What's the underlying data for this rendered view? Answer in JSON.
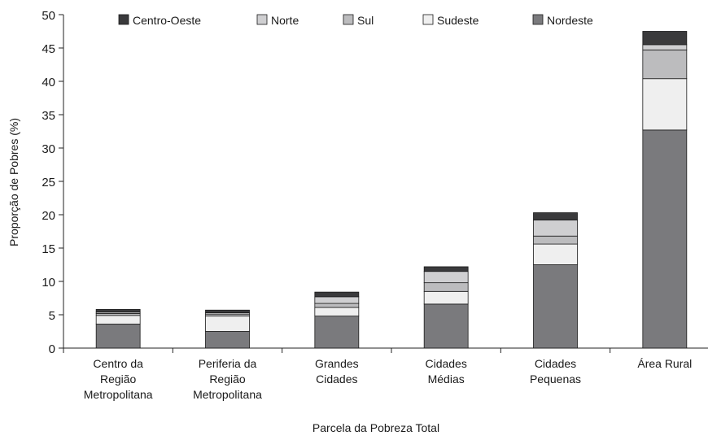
{
  "chart_data": {
    "type": "bar",
    "stacked": true,
    "title": "",
    "xlabel": "Parcela da Pobreza Total",
    "ylabel": "Proporção de Pobres (%)",
    "ylim": [
      0,
      50
    ],
    "yticks": [
      0,
      5,
      10,
      15,
      20,
      25,
      30,
      35,
      40,
      45,
      50
    ],
    "grid": false,
    "legend_position": "top",
    "categories": [
      [
        "Centro da",
        "Região",
        "Metropolitana"
      ],
      [
        "Periferia da",
        "Região",
        "Metropolitana"
      ],
      [
        "Grandes",
        "Cidades"
      ],
      [
        "Cidades",
        "Médias"
      ],
      [
        "Cidades",
        "Pequenas"
      ],
      [
        "Área Rural"
      ]
    ],
    "series": [
      {
        "name": "Nordeste",
        "color": "#7a7a7d",
        "values": [
          3.6,
          2.5,
          4.8,
          6.6,
          12.5,
          32.7
        ]
      },
      {
        "name": "Sudeste",
        "color": "#efefef",
        "values": [
          1.3,
          2.3,
          1.3,
          1.9,
          3.1,
          7.7
        ]
      },
      {
        "name": "Sul",
        "color": "#bcbcbe",
        "values": [
          0.3,
          0.3,
          0.6,
          1.3,
          1.2,
          4.3
        ]
      },
      {
        "name": "Norte",
        "color": "#cfcfd1",
        "values": [
          0.2,
          0.2,
          1.0,
          1.7,
          2.4,
          0.8
        ]
      },
      {
        "name": "Centro-Oeste",
        "color": "#3a3a3c",
        "values": [
          0.4,
          0.4,
          0.7,
          0.7,
          1.1,
          2.0
        ]
      }
    ],
    "legend_order": [
      "Centro-Oeste",
      "Norte",
      "Sul",
      "Sudeste",
      "Nordeste"
    ]
  }
}
